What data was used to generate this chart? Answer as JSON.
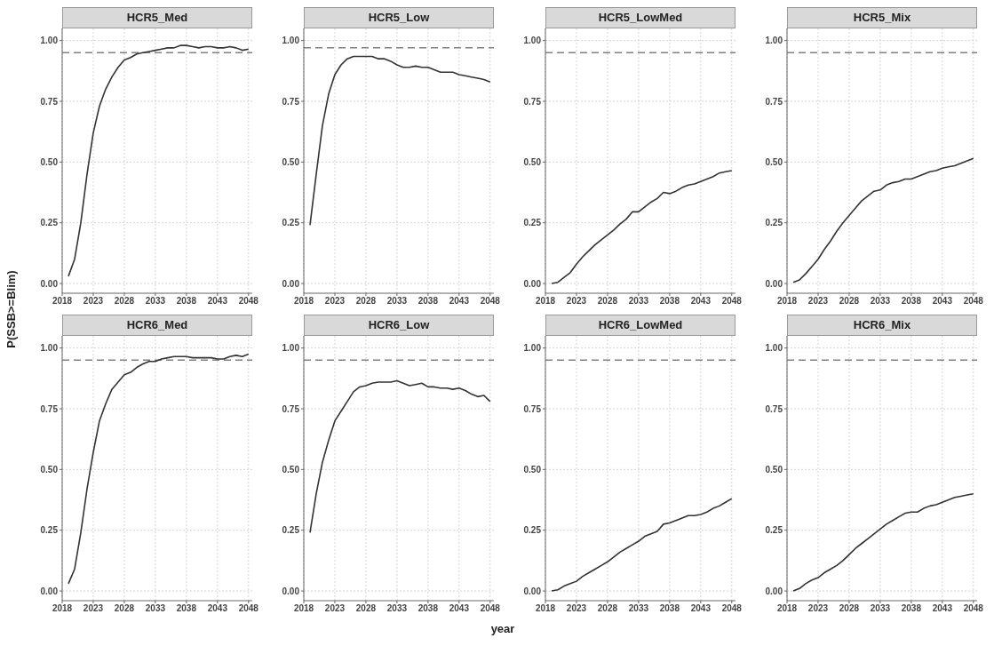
{
  "chart_data": [
    {
      "type": "line",
      "title": "HCR5_Med",
      "ylabel": "P(SSB>=Blim)",
      "x": [
        2019,
        2020,
        2021,
        2022,
        2023,
        2024,
        2025,
        2026,
        2027,
        2028,
        2029,
        2030,
        2031,
        2032,
        2033,
        2034,
        2035,
        2036,
        2037,
        2038,
        2039,
        2040,
        2041,
        2042,
        2043,
        2044,
        2045,
        2046,
        2047,
        2048
      ],
      "series": [
        {
          "color": "#333333",
          "values": [
            0.03,
            0.1,
            0.25,
            0.45,
            0.62,
            0.73,
            0.8,
            0.85,
            0.89,
            0.92,
            0.93,
            0.945,
            0.95,
            0.955,
            0.96,
            0.965,
            0.97,
            0.97,
            0.98,
            0.98,
            0.975,
            0.97,
            0.975,
            0.975,
            0.97,
            0.97,
            0.975,
            0.97,
            0.96,
            0.965
          ]
        }
      ],
      "xlim": [
        2018,
        2048.6
      ],
      "ylim": [
        -0.04,
        1.05
      ],
      "xticks": [
        2018,
        2023,
        2028,
        2033,
        2038,
        2043,
        2048
      ],
      "yticks": [
        {
          "value": 0,
          "label": "0.00"
        },
        {
          "value": 0.25,
          "label": "0.25"
        },
        {
          "value": 0.5,
          "label": "0.50"
        },
        {
          "value": 0.75,
          "label": "0.75"
        },
        {
          "value": 1,
          "label": "1.00"
        }
      ],
      "ref_lines": [
        {
          "axis": "y",
          "value": 0.95,
          "color": "#808080",
          "line_style": "dashed"
        }
      ],
      "grid": true
    },
    {
      "type": "line",
      "title": "HCR5_Low",
      "x": [
        2019,
        2020,
        2021,
        2022,
        2023,
        2024,
        2025,
        2026,
        2027,
        2028,
        2029,
        2030,
        2031,
        2032,
        2033,
        2034,
        2035,
        2036,
        2037,
        2038,
        2039,
        2040,
        2041,
        2042,
        2043,
        2044,
        2045,
        2046,
        2047,
        2048
      ],
      "series": [
        {
          "color": "#333333",
          "values": [
            0.24,
            0.45,
            0.65,
            0.78,
            0.86,
            0.9,
            0.925,
            0.935,
            0.935,
            0.935,
            0.935,
            0.925,
            0.925,
            0.915,
            0.9,
            0.89,
            0.89,
            0.895,
            0.89,
            0.89,
            0.88,
            0.87,
            0.87,
            0.87,
            0.86,
            0.855,
            0.85,
            0.845,
            0.84,
            0.83
          ]
        }
      ],
      "xlim": [
        2018,
        2048.6
      ],
      "ylim": [
        -0.04,
        1.05
      ],
      "xticks": [
        2018,
        2023,
        2028,
        2033,
        2038,
        2043,
        2048
      ],
      "yticks": [
        {
          "value": 0,
          "label": "0.00"
        },
        {
          "value": 0.25,
          "label": "0.25"
        },
        {
          "value": 0.5,
          "label": "0.50"
        },
        {
          "value": 0.75,
          "label": "0.75"
        },
        {
          "value": 1,
          "label": "1.00"
        }
      ],
      "ref_lines": [
        {
          "axis": "y",
          "value": 0.97,
          "color": "#808080",
          "line_style": "dashed"
        }
      ],
      "grid": true
    },
    {
      "type": "line",
      "title": "HCR5_LowMed",
      "x": [
        2019,
        2020,
        2021,
        2022,
        2023,
        2024,
        2025,
        2026,
        2027,
        2028,
        2029,
        2030,
        2031,
        2032,
        2033,
        2034,
        2035,
        2036,
        2037,
        2038,
        2039,
        2040,
        2041,
        2042,
        2043,
        2044,
        2045,
        2046,
        2047,
        2048
      ],
      "series": [
        {
          "color": "#333333",
          "values": [
            0.0,
            0.005,
            0.025,
            0.045,
            0.08,
            0.11,
            0.135,
            0.16,
            0.18,
            0.2,
            0.22,
            0.245,
            0.265,
            0.295,
            0.295,
            0.315,
            0.335,
            0.35,
            0.375,
            0.37,
            0.38,
            0.395,
            0.405,
            0.41,
            0.42,
            0.43,
            0.44,
            0.455,
            0.46,
            0.465
          ]
        }
      ],
      "xlim": [
        2018,
        2048.6
      ],
      "ylim": [
        -0.04,
        1.05
      ],
      "xticks": [
        2018,
        2023,
        2028,
        2033,
        2038,
        2043,
        2048
      ],
      "yticks": [
        {
          "value": 0,
          "label": "0.00"
        },
        {
          "value": 0.25,
          "label": "0.25"
        },
        {
          "value": 0.5,
          "label": "0.50"
        },
        {
          "value": 0.75,
          "label": "0.75"
        },
        {
          "value": 1,
          "label": "1.00"
        }
      ],
      "ref_lines": [
        {
          "axis": "y",
          "value": 0.95,
          "color": "#808080",
          "line_style": "dashed"
        }
      ],
      "grid": true
    },
    {
      "type": "line",
      "title": "HCR5_Mix",
      "x": [
        2019,
        2020,
        2021,
        2022,
        2023,
        2024,
        2025,
        2026,
        2027,
        2028,
        2029,
        2030,
        2031,
        2032,
        2033,
        2034,
        2035,
        2036,
        2037,
        2038,
        2039,
        2040,
        2041,
        2042,
        2043,
        2044,
        2045,
        2046,
        2047,
        2048
      ],
      "series": [
        {
          "color": "#333333",
          "values": [
            0.005,
            0.015,
            0.04,
            0.07,
            0.1,
            0.14,
            0.175,
            0.215,
            0.25,
            0.28,
            0.31,
            0.34,
            0.36,
            0.38,
            0.385,
            0.405,
            0.415,
            0.42,
            0.43,
            0.43,
            0.44,
            0.45,
            0.46,
            0.465,
            0.475,
            0.48,
            0.485,
            0.495,
            0.505,
            0.515
          ]
        }
      ],
      "xlim": [
        2018,
        2048.6
      ],
      "ylim": [
        -0.04,
        1.05
      ],
      "xticks": [
        2018,
        2023,
        2028,
        2033,
        2038,
        2043,
        2048
      ],
      "yticks": [
        {
          "value": 0,
          "label": "0.00"
        },
        {
          "value": 0.25,
          "label": "0.25"
        },
        {
          "value": 0.5,
          "label": "0.50"
        },
        {
          "value": 0.75,
          "label": "0.75"
        },
        {
          "value": 1,
          "label": "1.00"
        }
      ],
      "ref_lines": [
        {
          "axis": "y",
          "value": 0.95,
          "color": "#808080",
          "line_style": "dashed"
        }
      ],
      "grid": true
    },
    {
      "type": "line",
      "title": "HCR6_Med",
      "x": [
        2019,
        2020,
        2021,
        2022,
        2023,
        2024,
        2025,
        2026,
        2027,
        2028,
        2029,
        2030,
        2031,
        2032,
        2033,
        2034,
        2035,
        2036,
        2037,
        2038,
        2039,
        2040,
        2041,
        2042,
        2043,
        2044,
        2045,
        2046,
        2047,
        2048
      ],
      "series": [
        {
          "color": "#333333",
          "values": [
            0.03,
            0.09,
            0.24,
            0.42,
            0.57,
            0.7,
            0.77,
            0.83,
            0.86,
            0.89,
            0.9,
            0.92,
            0.935,
            0.945,
            0.945,
            0.955,
            0.96,
            0.965,
            0.965,
            0.965,
            0.96,
            0.96,
            0.96,
            0.96,
            0.955,
            0.955,
            0.965,
            0.97,
            0.965,
            0.975
          ]
        }
      ],
      "xlim": [
        2018,
        2048.6
      ],
      "ylim": [
        -0.04,
        1.05
      ],
      "xticks": [
        2018,
        2023,
        2028,
        2033,
        2038,
        2043,
        2048
      ],
      "yticks": [
        {
          "value": 0,
          "label": "0.00"
        },
        {
          "value": 0.25,
          "label": "0.25"
        },
        {
          "value": 0.5,
          "label": "0.50"
        },
        {
          "value": 0.75,
          "label": "0.75"
        },
        {
          "value": 1,
          "label": "1.00"
        }
      ],
      "ref_lines": [
        {
          "axis": "y",
          "value": 0.95,
          "color": "#808080",
          "line_style": "dashed"
        }
      ],
      "grid": true
    },
    {
      "type": "line",
      "title": "HCR6_Low",
      "xlabel": "year",
      "x": [
        2019,
        2020,
        2021,
        2022,
        2023,
        2024,
        2025,
        2026,
        2027,
        2028,
        2029,
        2030,
        2031,
        2032,
        2033,
        2034,
        2035,
        2036,
        2037,
        2038,
        2039,
        2040,
        2041,
        2042,
        2043,
        2044,
        2045,
        2046,
        2047,
        2048
      ],
      "series": [
        {
          "color": "#333333",
          "values": [
            0.24,
            0.4,
            0.53,
            0.62,
            0.7,
            0.74,
            0.78,
            0.82,
            0.84,
            0.845,
            0.855,
            0.86,
            0.86,
            0.86,
            0.865,
            0.855,
            0.845,
            0.85,
            0.855,
            0.84,
            0.84,
            0.835,
            0.835,
            0.83,
            0.835,
            0.825,
            0.81,
            0.8,
            0.805,
            0.78
          ]
        }
      ],
      "xlim": [
        2018,
        2048.6
      ],
      "ylim": [
        -0.04,
        1.05
      ],
      "xticks": [
        2018,
        2023,
        2028,
        2033,
        2038,
        2043,
        2048
      ],
      "yticks": [
        {
          "value": 0,
          "label": "0.00"
        },
        {
          "value": 0.25,
          "label": "0.25"
        },
        {
          "value": 0.5,
          "label": "0.50"
        },
        {
          "value": 0.75,
          "label": "0.75"
        },
        {
          "value": 1,
          "label": "1.00"
        }
      ],
      "ref_lines": [
        {
          "axis": "y",
          "value": 0.95,
          "color": "#808080",
          "line_style": "dashed"
        }
      ],
      "grid": true
    },
    {
      "type": "line",
      "title": "HCR6_LowMed",
      "x": [
        2019,
        2020,
        2021,
        2022,
        2023,
        2024,
        2025,
        2026,
        2027,
        2028,
        2029,
        2030,
        2031,
        2032,
        2033,
        2034,
        2035,
        2036,
        2037,
        2038,
        2039,
        2040,
        2041,
        2042,
        2043,
        2044,
        2045,
        2046,
        2047,
        2048
      ],
      "series": [
        {
          "color": "#333333",
          "values": [
            0.0,
            0.005,
            0.02,
            0.03,
            0.04,
            0.06,
            0.075,
            0.09,
            0.105,
            0.12,
            0.14,
            0.16,
            0.175,
            0.19,
            0.205,
            0.225,
            0.235,
            0.245,
            0.275,
            0.28,
            0.29,
            0.3,
            0.31,
            0.31,
            0.315,
            0.325,
            0.34,
            0.35,
            0.365,
            0.38
          ]
        }
      ],
      "xlim": [
        2018,
        2048.6
      ],
      "ylim": [
        -0.04,
        1.05
      ],
      "xticks": [
        2018,
        2023,
        2028,
        2033,
        2038,
        2043,
        2048
      ],
      "yticks": [
        {
          "value": 0,
          "label": "0.00"
        },
        {
          "value": 0.25,
          "label": "0.25"
        },
        {
          "value": 0.5,
          "label": "0.50"
        },
        {
          "value": 0.75,
          "label": "0.75"
        },
        {
          "value": 1,
          "label": "1.00"
        }
      ],
      "ref_lines": [
        {
          "axis": "y",
          "value": 0.95,
          "color": "#808080",
          "line_style": "dashed"
        }
      ],
      "grid": true
    },
    {
      "type": "line",
      "title": "HCR6_Mix",
      "x": [
        2019,
        2020,
        2021,
        2022,
        2023,
        2024,
        2025,
        2026,
        2027,
        2028,
        2029,
        2030,
        2031,
        2032,
        2033,
        2034,
        2035,
        2036,
        2037,
        2038,
        2039,
        2040,
        2041,
        2042,
        2043,
        2044,
        2045,
        2046,
        2047,
        2048
      ],
      "series": [
        {
          "color": "#333333",
          "values": [
            0.0,
            0.01,
            0.03,
            0.045,
            0.055,
            0.075,
            0.09,
            0.105,
            0.125,
            0.15,
            0.175,
            0.195,
            0.215,
            0.235,
            0.255,
            0.275,
            0.29,
            0.305,
            0.32,
            0.325,
            0.325,
            0.34,
            0.35,
            0.355,
            0.365,
            0.375,
            0.385,
            0.39,
            0.395,
            0.4
          ]
        }
      ],
      "xlim": [
        2018,
        2048.6
      ],
      "ylim": [
        -0.04,
        1.05
      ],
      "xticks": [
        2018,
        2023,
        2028,
        2033,
        2038,
        2043,
        2048
      ],
      "yticks": [
        {
          "value": 0,
          "label": "0.00"
        },
        {
          "value": 0.25,
          "label": "0.25"
        },
        {
          "value": 0.5,
          "label": "0.50"
        },
        {
          "value": 0.75,
          "label": "0.75"
        },
        {
          "value": 1,
          "label": "1.00"
        }
      ],
      "ref_lines": [
        {
          "axis": "y",
          "value": 0.95,
          "color": "#808080",
          "line_style": "dashed"
        }
      ],
      "grid": true
    }
  ]
}
